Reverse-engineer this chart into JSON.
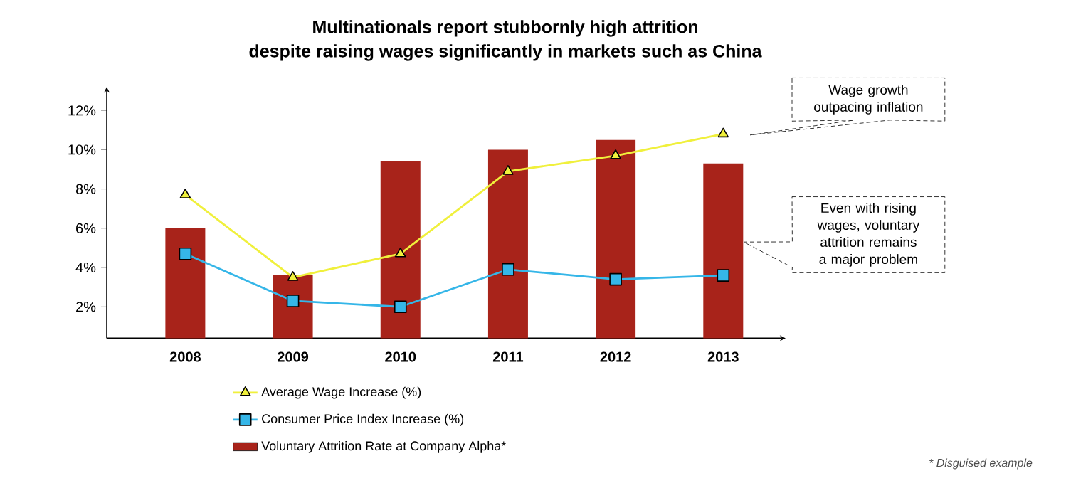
{
  "chart_data": {
    "type": "bar",
    "title": "Multinationals report stubbornly high attrition",
    "subtitle": "despite raising wages significantly in markets such as China",
    "categories": [
      "2008",
      "2009",
      "2010",
      "2011",
      "2012",
      "2013"
    ],
    "series": [
      {
        "name": "Average Wage Increase (%)",
        "type": "line",
        "color": "#f0f03c",
        "marker": "triangle",
        "values": [
          7.7,
          3.5,
          4.7,
          8.9,
          9.7,
          10.8
        ]
      },
      {
        "name": "Consumer Price Index Increase (%)",
        "type": "line",
        "color": "#35b6e8",
        "marker": "square",
        "values": [
          4.7,
          2.3,
          2.0,
          3.9,
          3.4,
          3.6
        ]
      },
      {
        "name": "Voluntary Attrition Rate at Company Alpha*",
        "color": "#a8231a",
        "values": [
          6.0,
          3.6,
          9.4,
          10.0,
          10.5,
          9.3
        ]
      }
    ],
    "ylim": [
      0.4,
      13.2
    ],
    "yticks": [
      {
        "value": 2,
        "label": "2%"
      },
      {
        "value": 4,
        "label": "4%"
      },
      {
        "value": 6,
        "label": "6%"
      },
      {
        "value": 8,
        "label": "8%"
      },
      {
        "value": 10,
        "label": "10%"
      },
      {
        "value": 12,
        "label": "12%"
      }
    ],
    "grid": false,
    "legend": "bottom",
    "line_style": "solid",
    "annotations": [
      "Wage growth outpacing inflation",
      "Even with rising wages, voluntary attrition remains a major problem",
      "* Disguised example"
    ]
  }
}
